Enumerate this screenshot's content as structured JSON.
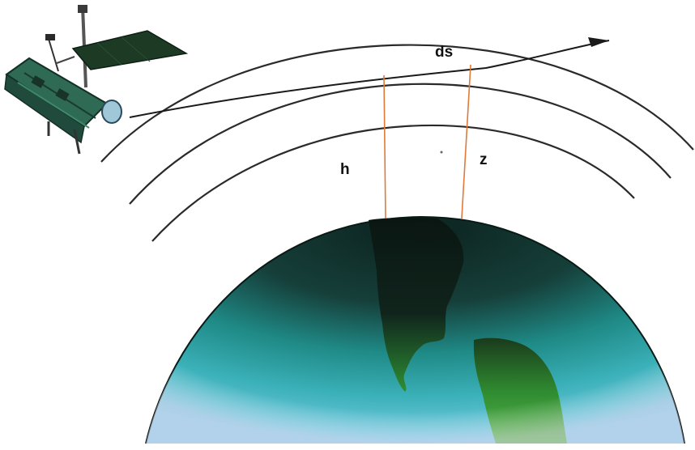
{
  "labels": {
    "ds": "ds",
    "h": "h",
    "z": "z"
  },
  "colors": {
    "background": "#ffffff",
    "layer_lines": "#2a2a2a",
    "height_lines": "#e07a3a",
    "earth_dark": "#0f2a26",
    "earth_teal": "#1f8a86",
    "earth_light": "#6fc6e4",
    "land_dark": "#0a1814",
    "land_green": "#3a9a38",
    "satellite_panel": "#1c3a24",
    "satellite_body": "#2f6a55"
  },
  "icons": {
    "satellite": "satellite-icon",
    "earth": "earth-icon",
    "arrow": "arrow-head-icon"
  }
}
